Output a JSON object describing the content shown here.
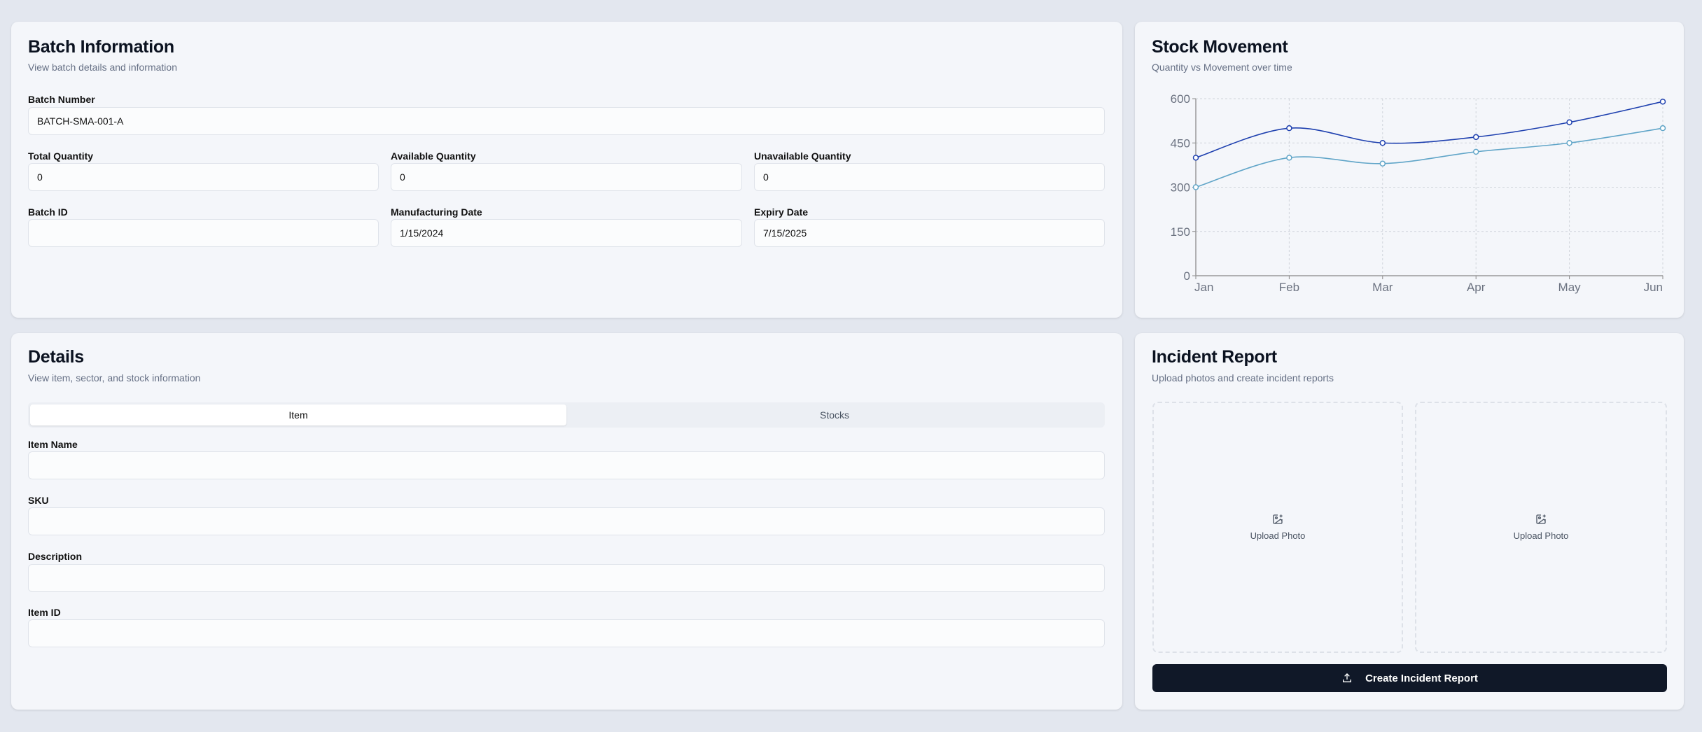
{
  "batch": {
    "title": "Batch Information",
    "subtitle": "View batch details and information",
    "fields": [
      {
        "label": "Batch Number",
        "value": "BATCH-SMA-001-A"
      },
      {
        "label": "Total Quantity",
        "value": "0"
      },
      {
        "label": "Available Quantity",
        "value": "0"
      },
      {
        "label": "Unavailable Quantity",
        "value": "0"
      },
      {
        "label": "Batch ID",
        "value": ""
      },
      {
        "label": "Manufacturing Date",
        "value": "1/15/2024"
      },
      {
        "label": "Expiry Date",
        "value": "7/15/2025"
      }
    ]
  },
  "stock": {
    "title": "Stock Movement",
    "subtitle": "Quantity vs Movement over time"
  },
  "chart_data": {
    "type": "line",
    "categories": [
      "Jan",
      "Feb",
      "Mar",
      "Apr",
      "May",
      "Jun"
    ],
    "ylim": [
      0,
      600
    ],
    "yticks": [
      "0",
      "150",
      "300",
      "450",
      "600"
    ],
    "grid": true,
    "series": [
      {
        "color": "#1e40af",
        "values": [
          400,
          500,
          450,
          470,
          520,
          590
        ]
      },
      {
        "color": "#60a5c8",
        "values": [
          300,
          400,
          380,
          420,
          450,
          500
        ]
      }
    ]
  },
  "details": {
    "title": "Details",
    "subtitle": "View item, sector, and stock information",
    "tabs": [
      {
        "label": "Item",
        "active": true
      },
      {
        "label": "Stocks",
        "active": false
      }
    ],
    "fields": [
      {
        "label": "Item Name",
        "value": ""
      },
      {
        "label": "SKU",
        "value": ""
      },
      {
        "label": "Description",
        "value": ""
      },
      {
        "label": "Item ID",
        "value": ""
      }
    ]
  },
  "incident": {
    "title": "Incident Report",
    "subtitle": "Upload photos and create incident reports",
    "upload_label": "Upload Photo",
    "button": "Create Incident Report",
    "icons": [
      "image-plus-icon",
      "upload-icon"
    ]
  }
}
